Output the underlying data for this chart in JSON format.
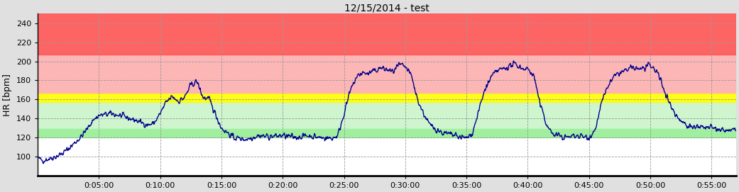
{
  "title": "12/15/2014 - test",
  "ylabel": "HR [bpm]",
  "ylim": [
    80,
    250
  ],
  "yticks": [
    100,
    120,
    140,
    160,
    180,
    200,
    220,
    240
  ],
  "xlim": [
    0,
    3420
  ],
  "xtick_positions": [
    300,
    600,
    900,
    1200,
    1500,
    1800,
    2100,
    2400,
    2700,
    3000,
    3300
  ],
  "xtick_labels": [
    "0:05:00",
    "0:10:00",
    "0:15:00",
    "0:20:00",
    "0:25:00",
    "0:30:00",
    "0:35:00",
    "0:40:00",
    "0:45:00",
    "0:50:00",
    "0:55:00"
  ],
  "fig_bg_color": "#e0e0e0",
  "plot_bg_color": "#f5f5f5",
  "line_color": "#00008B",
  "line_width": 1.0,
  "zones": [
    {
      "ymin": 80,
      "ymax": 120,
      "color": "#ffffff",
      "alpha": 1.0
    },
    {
      "ymin": 120,
      "ymax": 130,
      "color": "#90ee90",
      "alpha": 0.85
    },
    {
      "ymin": 130,
      "ymax": 157,
      "color": "#c8f5c8",
      "alpha": 0.85
    },
    {
      "ymin": 157,
      "ymax": 167,
      "color": "#ffff00",
      "alpha": 0.9
    },
    {
      "ymin": 167,
      "ymax": 207,
      "color": "#ffb0b0",
      "alpha": 0.9
    },
    {
      "ymin": 207,
      "ymax": 250,
      "color": "#ff5555",
      "alpha": 0.9
    }
  ],
  "grid_color": "#999999",
  "grid_style": "--",
  "title_fontsize": 10,
  "axis_label_fontsize": 9,
  "tick_fontsize": 8,
  "keypoints": [
    [
      0,
      98
    ],
    [
      30,
      96
    ],
    [
      60,
      98
    ],
    [
      90,
      100
    ],
    [
      120,
      103
    ],
    [
      150,
      108
    ],
    [
      180,
      114
    ],
    [
      210,
      120
    ],
    [
      240,
      128
    ],
    [
      270,
      138
    ],
    [
      300,
      143
    ],
    [
      360,
      145
    ],
    [
      420,
      142
    ],
    [
      480,
      138
    ],
    [
      540,
      133
    ],
    [
      570,
      135
    ],
    [
      600,
      145
    ],
    [
      630,
      157
    ],
    [
      660,
      163
    ],
    [
      690,
      158
    ],
    [
      720,
      162
    ],
    [
      750,
      175
    ],
    [
      780,
      179
    ],
    [
      810,
      162
    ],
    [
      840,
      160
    ],
    [
      870,
      145
    ],
    [
      900,
      130
    ],
    [
      960,
      120
    ],
    [
      1020,
      118
    ],
    [
      1080,
      122
    ],
    [
      1140,
      121
    ],
    [
      1200,
      122
    ],
    [
      1260,
      120
    ],
    [
      1320,
      122
    ],
    [
      1380,
      120
    ],
    [
      1440,
      119
    ],
    [
      1470,
      122
    ],
    [
      1500,
      145
    ],
    [
      1530,
      168
    ],
    [
      1560,
      183
    ],
    [
      1590,
      188
    ],
    [
      1620,
      187
    ],
    [
      1650,
      190
    ],
    [
      1680,
      193
    ],
    [
      1710,
      191
    ],
    [
      1740,
      189
    ],
    [
      1770,
      196
    ],
    [
      1800,
      194
    ],
    [
      1830,
      185
    ],
    [
      1860,
      160
    ],
    [
      1890,
      145
    ],
    [
      1920,
      133
    ],
    [
      1980,
      125
    ],
    [
      2040,
      122
    ],
    [
      2100,
      119
    ],
    [
      2130,
      125
    ],
    [
      2160,
      148
    ],
    [
      2190,
      170
    ],
    [
      2220,
      183
    ],
    [
      2250,
      190
    ],
    [
      2280,
      192
    ],
    [
      2310,
      195
    ],
    [
      2340,
      197
    ],
    [
      2370,
      193
    ],
    [
      2400,
      192
    ],
    [
      2430,
      185
    ],
    [
      2460,
      155
    ],
    [
      2490,
      135
    ],
    [
      2520,
      124
    ],
    [
      2580,
      120
    ],
    [
      2640,
      122
    ],
    [
      2700,
      120
    ],
    [
      2730,
      128
    ],
    [
      2760,
      155
    ],
    [
      2790,
      173
    ],
    [
      2820,
      183
    ],
    [
      2850,
      188
    ],
    [
      2880,
      190
    ],
    [
      2910,
      193
    ],
    [
      2940,
      192
    ],
    [
      2970,
      193
    ],
    [
      3000,
      195
    ],
    [
      3030,
      190
    ],
    [
      3060,
      175
    ],
    [
      3090,
      158
    ],
    [
      3120,
      145
    ],
    [
      3150,
      138
    ],
    [
      3180,
      133
    ],
    [
      3210,
      131
    ],
    [
      3300,
      130
    ],
    [
      3360,
      127
    ],
    [
      3420,
      128
    ]
  ]
}
